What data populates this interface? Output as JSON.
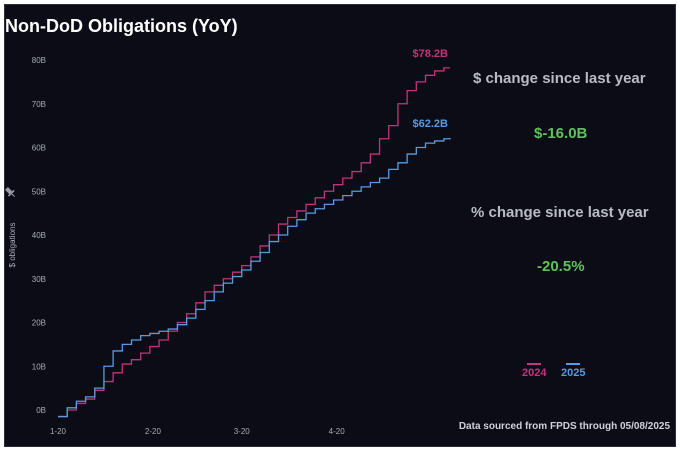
{
  "title": "Non-DoD Obligations (YoY)",
  "stats": {
    "dollar_label": "$ change since last year",
    "dollar_value": "$-16.0B",
    "pct_label": "% change since last year",
    "pct_value": "-20.5%"
  },
  "footer": "Data sourced from FPDS through 05/08/2025",
  "colors": {
    "y2024": "#c2347c",
    "y2025": "#5a9be0",
    "stat_value": "#5ec25e"
  },
  "chart_data": {
    "type": "line",
    "ylabel": "$ obligations",
    "y_ticks": [
      "0B",
      "10B",
      "20B",
      "30B",
      "40B",
      "50B",
      "60B",
      "70B",
      "80B"
    ],
    "x_ticks": [
      "1-20",
      "2-20",
      "3-20",
      "4-20"
    ],
    "ylim": [
      0,
      80
    ],
    "xlim": [
      0,
      128
    ],
    "grid": false,
    "legend": "right",
    "series": [
      {
        "name": "2024",
        "end_label": "$78.2B",
        "x": [
          0,
          3,
          6,
          9,
          12,
          15,
          18,
          21,
          24,
          27,
          30,
          33,
          36,
          39,
          42,
          45,
          48,
          51,
          54,
          57,
          60,
          63,
          66,
          69,
          72,
          75,
          78,
          81,
          84,
          87,
          90,
          93,
          96,
          99,
          102,
          105,
          108,
          111,
          114,
          117,
          120,
          123,
          126,
          128
        ],
        "values": [
          -1.5,
          0,
          1.5,
          2.5,
          4.5,
          6.5,
          8.5,
          10.5,
          11.5,
          13,
          14.5,
          16,
          18,
          20,
          22,
          24.5,
          27,
          28.5,
          30,
          31.5,
          33,
          35,
          37.5,
          40,
          42.5,
          44,
          45.5,
          47,
          48.5,
          50,
          51.5,
          53,
          54.5,
          56.5,
          58.5,
          62,
          65,
          70,
          73,
          75,
          76.5,
          77.5,
          78.2,
          78.2
        ]
      },
      {
        "name": "2025",
        "end_label": "$62.2B",
        "x": [
          0,
          3,
          6,
          9,
          12,
          15,
          18,
          21,
          24,
          27,
          30,
          33,
          36,
          39,
          42,
          45,
          48,
          51,
          54,
          57,
          60,
          63,
          66,
          69,
          72,
          75,
          78,
          81,
          84,
          87,
          90,
          93,
          96,
          99,
          102,
          105,
          108,
          111,
          114,
          117,
          120,
          123,
          126,
          128
        ],
        "values": [
          -1.5,
          0.5,
          2,
          3,
          5,
          10,
          13.5,
          15,
          16,
          17,
          17.5,
          18,
          18.5,
          19.5,
          21,
          23,
          25,
          27,
          29,
          30.5,
          32,
          34,
          36,
          38.5,
          40,
          42,
          43.5,
          45,
          46,
          47,
          48,
          49,
          50,
          51,
          52,
          53,
          55,
          56.5,
          58.5,
          60,
          61,
          61.5,
          62,
          62.2
        ]
      }
    ]
  }
}
